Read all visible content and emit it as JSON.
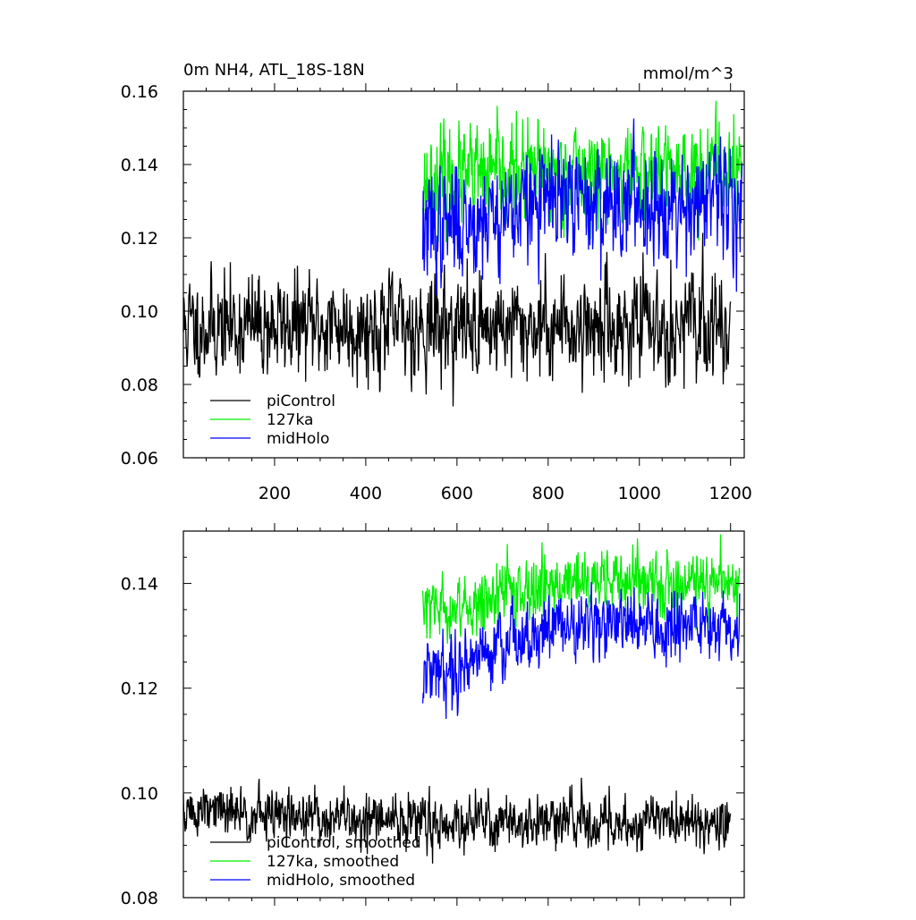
{
  "chart_data": [
    {
      "type": "line",
      "title": "0m NH4, ATL_18S-18N",
      "units": "mmol/m^3",
      "xlim": [
        0,
        1230
      ],
      "ylim": [
        0.06,
        0.16
      ],
      "x_ticks": [
        200,
        400,
        600,
        800,
        1000,
        1200
      ],
      "x_tick_labels": [
        "200",
        "400",
        "600",
        "800",
        "1000",
        "1200"
      ],
      "y_ticks": [
        0.06,
        0.08,
        0.1,
        0.12,
        0.14,
        0.16
      ],
      "y_tick_labels": [
        "0.06",
        "0.08",
        "0.10",
        "0.12",
        "0.14",
        "0.16"
      ],
      "legend_position": "bottom-left",
      "grid": false,
      "series": [
        {
          "name": "piControl",
          "color": "#000000",
          "x_range": [
            0,
            1200
          ],
          "n": 1200,
          "mean": 0.096,
          "noise": 0.0065,
          "trend": 0,
          "seed": 11
        },
        {
          "name": "127ka",
          "color": "#00ee00",
          "x_range": [
            525,
            1225
          ],
          "n": 700,
          "mean": 0.135,
          "noise": 0.0062,
          "trend": 0.003,
          "seed": 23
        },
        {
          "name": "midHolo",
          "color": "#0000ff",
          "x_range": [
            525,
            1225
          ],
          "n": 700,
          "mean": 0.122,
          "noise": 0.0072,
          "trend": 0.008,
          "seed": 37
        }
      ]
    },
    {
      "type": "line",
      "xlim": [
        0,
        1230
      ],
      "ylim": [
        0.08,
        0.15
      ],
      "x_ticks": [
        200,
        400,
        600,
        800,
        1000,
        1200
      ],
      "y_ticks": [
        0.08,
        0.1,
        0.12,
        0.14
      ],
      "y_tick_labels": [
        "0.08",
        "0.10",
        "0.12",
        "0.14"
      ],
      "legend_position": "bottom-left",
      "grid": false,
      "series": [
        {
          "name": "piControl, smoothed",
          "color": "#000000",
          "x_range": [
            0,
            1200
          ],
          "n": 1200,
          "mean": 0.0965,
          "noise": 0.0024,
          "trend": -0.002,
          "seed": 51
        },
        {
          "name": "127ka, smoothed",
          "color": "#00ee00",
          "x_range": [
            525,
            1220
          ],
          "n": 695,
          "mean": 0.134,
          "noise": 0.0028,
          "trend": 0.006,
          "seed": 63
        },
        {
          "name": "midHolo, smoothed",
          "color": "#0000ff",
          "x_range": [
            525,
            1220
          ],
          "n": 695,
          "mean": 0.122,
          "noise": 0.0032,
          "trend": 0.01,
          "seed": 79
        }
      ]
    }
  ]
}
